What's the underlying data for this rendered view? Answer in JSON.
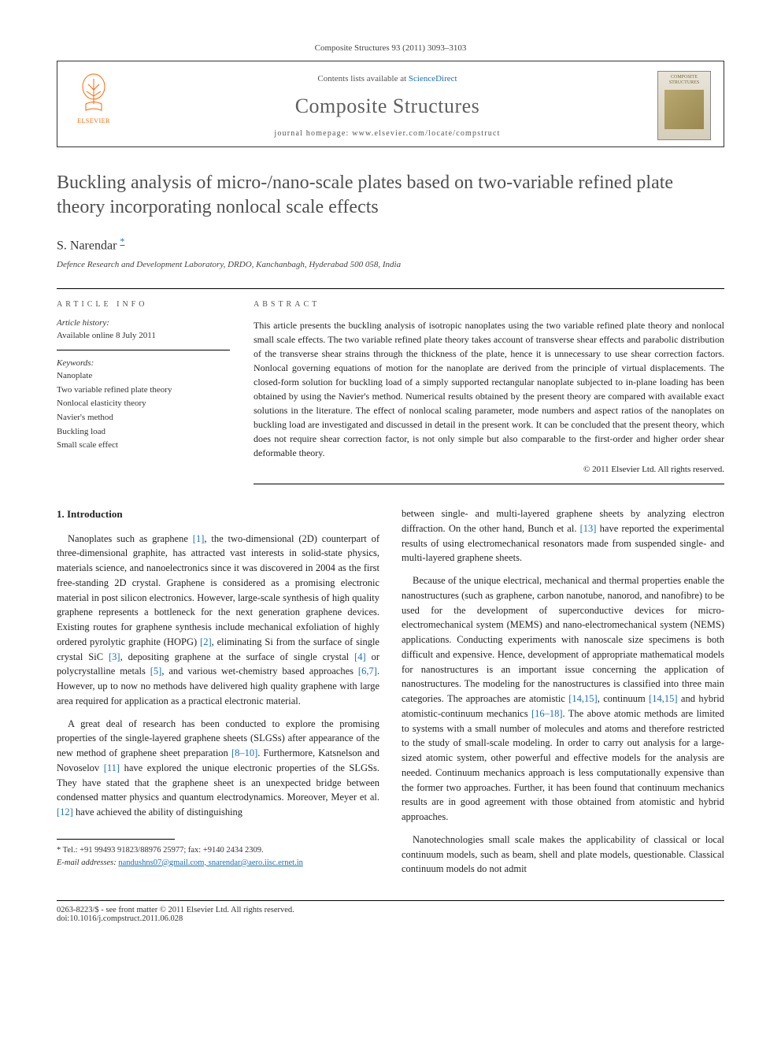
{
  "citation": "Composite Structures 93 (2011) 3093–3103",
  "header": {
    "contents_prefix": "Contents lists available at ",
    "contents_link": "ScienceDirect",
    "journal_title": "Composite Structures",
    "homepage_prefix": "journal homepage: ",
    "homepage_url": "www.elsevier.com/locate/compstruct",
    "publisher_name": "ELSEVIER",
    "cover_text_1": "COMPOSITE",
    "cover_text_2": "STRUCTURES"
  },
  "article": {
    "title": "Buckling analysis of micro-/nano-scale plates based on two-variable refined plate theory incorporating nonlocal scale effects",
    "author": "S. Narendar",
    "author_mark": "*",
    "affiliation": "Defence Research and Development Laboratory, DRDO, Kanchanbagh, Hyderabad 500 058, India"
  },
  "info": {
    "article_info_label": "ARTICLE INFO",
    "abstract_label": "ABSTRACT",
    "history_label": "Article history:",
    "history_text": "Available online 8 July 2011",
    "keywords_label": "Keywords:",
    "keywords": [
      "Nanoplate",
      "Two variable refined plate theory",
      "Nonlocal elasticity theory",
      "Navier's method",
      "Buckling load",
      "Small scale effect"
    ],
    "abstract_text": "This article presents the buckling analysis of isotropic nanoplates using the two variable refined plate theory and nonlocal small scale effects. The two variable refined plate theory takes account of transverse shear effects and parabolic distribution of the transverse shear strains through the thickness of the plate, hence it is unnecessary to use shear correction factors. Nonlocal governing equations of motion for the nanoplate are derived from the principle of virtual displacements. The closed-form solution for buckling load of a simply supported rectangular nanoplate subjected to in-plane loading has been obtained by using the Navier's method. Numerical results obtained by the present theory are compared with available exact solutions in the literature. The effect of nonlocal scaling parameter, mode numbers and aspect ratios of the nanoplates on buckling load are investigated and discussed in detail in the present work. It can be concluded that the present theory, which does not require shear correction factor, is not only simple but also comparable to the first-order and higher order shear deformable theory.",
    "copyright": "© 2011 Elsevier Ltd. All rights reserved."
  },
  "body": {
    "intro_heading": "1. Introduction",
    "left_paragraphs": [
      "Nanoplates such as graphene [1], the two-dimensional (2D) counterpart of three-dimensional graphite, has attracted vast interests in solid-state physics, materials science, and nanoelectronics since it was discovered in 2004 as the first free-standing 2D crystal. Graphene is considered as a promising electronic material in post silicon electronics. However, large-scale synthesis of high quality graphene represents a bottleneck for the next generation graphene devices. Existing routes for graphene synthesis include mechanical exfoliation of highly ordered pyrolytic graphite (HOPG) [2], eliminating Si from the surface of single crystal SiC [3], depositing graphene at the surface of single crystal [4] or polycrystalline metals [5], and various wet-chemistry based approaches [6,7]. However, up to now no methods have delivered high quality graphene with large area required for application as a practical electronic material.",
      "A great deal of research has been conducted to explore the promising properties of the single-layered graphene sheets (SLGSs) after appearance of the new method of graphene sheet preparation [8–10]. Furthermore, Katsnelson and Novoselov [11] have explored the unique electronic properties of the SLGSs. They have stated that the graphene sheet is an unexpected bridge between condensed matter physics and quantum electrodynamics. Moreover, Meyer et al. [12] have achieved the ability of distinguishing"
    ],
    "right_paragraphs": [
      "between single- and multi-layered graphene sheets by analyzing electron diffraction. On the other hand, Bunch et al. [13] have reported the experimental results of using electromechanical resonators made from suspended single- and multi-layered graphene sheets.",
      "Because of the unique electrical, mechanical and thermal properties enable the nanostructures (such as graphene, carbon nanotube, nanorod, and nanofibre) to be used for the development of superconductive devices for micro-electromechanical system (MEMS) and nano-electromechanical system (NEMS) applications. Conducting experiments with nanoscale size specimens is both difficult and expensive. Hence, development of appropriate mathematical models for nanostructures is an important issue concerning the application of nanostructures. The modeling for the nanostructures is classified into three main categories. The approaches are atomistic [14,15], continuum [14,15] and hybrid atomistic-continuum mechanics [16–18]. The above atomic methods are limited to systems with a small number of molecules and atoms and therefore restricted to the study of small-scale modeling. In order to carry out analysis for a large-sized atomic system, other powerful and effective models for the analysis are needed. Continuum mechanics approach is less computationally expensive than the former two approaches. Further, it has been found that continuum mechanics results are in good agreement with those obtained from atomistic and hybrid approaches.",
      "Nanotechnologies small scale makes the applicability of classical or local continuum models, such as beam, shell and plate models, questionable. Classical continuum models do not admit"
    ]
  },
  "footnote": {
    "tel_label": "* Tel.: ",
    "tel": "+91 99493 91823/88976 25977; fax: +9140 2434 2309.",
    "email_label": "E-mail addresses: ",
    "emails": "nandushns07@gmail.com, snarendar@aero.iisc.ernet.in"
  },
  "bottom": {
    "left": "0263-8223/$ - see front matter © 2011 Elsevier Ltd. All rights reserved.",
    "doi": "doi:10.1016/j.compstruct.2011.06.028"
  },
  "colors": {
    "link": "#1a6eb8",
    "elsevier_orange": "#ff6600",
    "text": "#222222",
    "gray_heading": "#505050"
  }
}
